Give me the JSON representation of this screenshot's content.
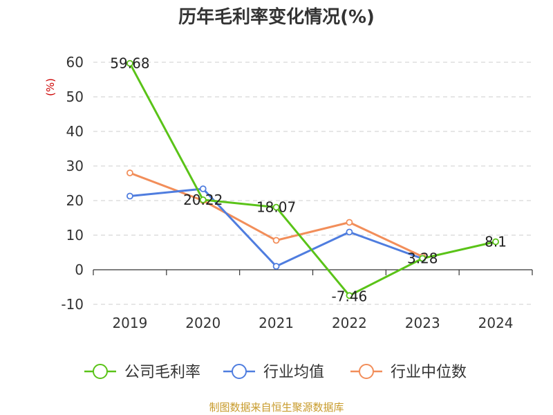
{
  "title": "历年毛利率变化情况(%)",
  "footer": "制图数据来自恒生聚源数据库",
  "colors": {
    "footer": "#c79a2a",
    "unit": "#cc0000",
    "axis": "#333333",
    "grid": "#cccccc"
  },
  "chart_data": {
    "type": "line",
    "categories": [
      "2019",
      "2020",
      "2021",
      "2022",
      "2023",
      "2024"
    ],
    "ylabel": "(%)",
    "ylim": [
      -10,
      60
    ],
    "yticks": [
      -10,
      0,
      10,
      20,
      30,
      40,
      50,
      60
    ],
    "grid": true,
    "legend_position": "bottom",
    "series": [
      {
        "name": "公司毛利率",
        "color": "#5ac318",
        "values": [
          59.68,
          20.22,
          18.07,
          -7.46,
          3.28,
          8.1
        ],
        "labels": [
          "59.68",
          "20.22",
          "18.07",
          "-7.46",
          "3.28",
          "8.1"
        ]
      },
      {
        "name": "行业均值",
        "color": "#4f7ddf",
        "values": [
          21.3,
          23.4,
          1.0,
          10.9,
          3.2,
          null
        ]
      },
      {
        "name": "行业中位数",
        "color": "#f28e5a",
        "values": [
          28.0,
          20.0,
          8.5,
          13.7,
          3.8,
          null
        ]
      }
    ]
  }
}
